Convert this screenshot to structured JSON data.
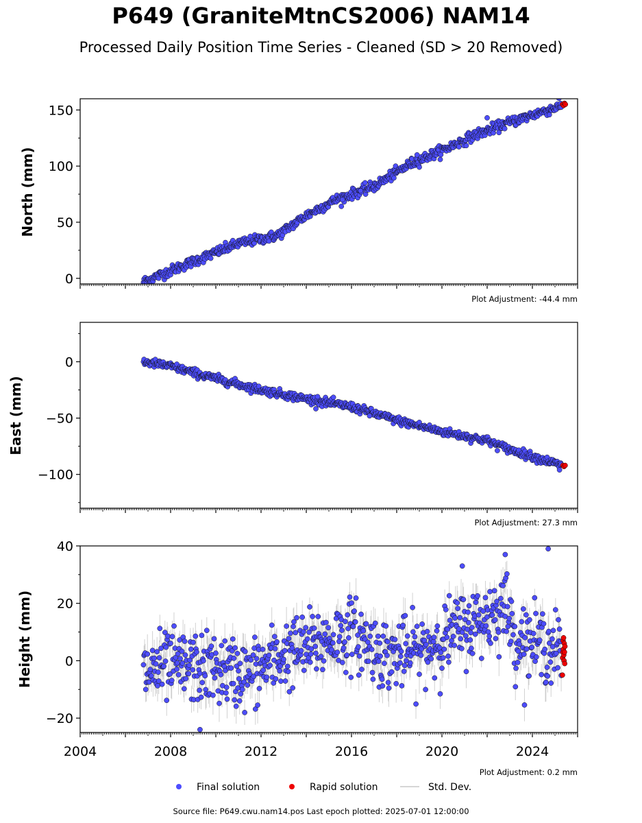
{
  "title": "P649 (GraniteMtnCS2006) NAM14",
  "subtitle": "Processed Daily Position Time Series - Cleaned (SD > 20 Removed)",
  "footer": "Source file: P649.cwu.nam14.pos  Last epoch plotted: 2025-07-01 12:00:00",
  "colors": {
    "final": "#4d4dff",
    "rapid": "#ee0000",
    "stddev": "#c8c8c8",
    "edge": "#000000"
  },
  "legend": [
    {
      "label": "Final solution",
      "marker": "blue-dot"
    },
    {
      "label": "Rapid solution",
      "marker": "red-dot"
    },
    {
      "label": "Std. Dev.",
      "marker": "gray-line"
    }
  ],
  "chart_data": [
    {
      "type": "scatter",
      "component": "north",
      "ylabel": "North (mm)",
      "xlim": [
        2004.0,
        2026.0
      ],
      "ylim": [
        -5,
        160
      ],
      "yticks": [
        0,
        50,
        100,
        150
      ],
      "xtick_labels_visible": false,
      "plot_adjustment": "Plot Adjustment: -44.4 mm",
      "final_trend": [
        [
          2006.8,
          -3
        ],
        [
          2009.0,
          15
        ],
        [
          2011.0,
          31
        ],
        [
          2012.7,
          38
        ],
        [
          2014.0,
          56
        ],
        [
          2015.3,
          70
        ],
        [
          2017.0,
          82
        ],
        [
          2018.6,
          102
        ],
        [
          2020.0,
          114
        ],
        [
          2021.5,
          128
        ],
        [
          2023.0,
          139
        ],
        [
          2025.3,
          154
        ]
      ],
      "final_noise_sd": 2.2,
      "outliers": [
        [
          2015.6,
          70
        ],
        [
          2016.4,
          78
        ],
        [
          2018.9,
          110
        ],
        [
          2022.0,
          143
        ]
      ],
      "rapid_points": [
        [
          2025.33,
          155
        ],
        [
          2025.38,
          154
        ],
        [
          2025.42,
          156
        ],
        [
          2025.46,
          155
        ]
      ]
    },
    {
      "type": "scatter",
      "component": "east",
      "ylabel": "East (mm)",
      "xlim": [
        2004.0,
        2026.0
      ],
      "ylim": [
        -130,
        35
      ],
      "yticks": [
        0,
        -50,
        -100
      ],
      "xtick_labels_visible": false,
      "plot_adjustment": "Plot Adjustment: 27.3 mm",
      "final_trend": [
        [
          2006.8,
          0
        ],
        [
          2008.0,
          -4
        ],
        [
          2010.0,
          -15
        ],
        [
          2012.0,
          -25
        ],
        [
          2014.0,
          -33
        ],
        [
          2016.0,
          -40
        ],
        [
          2018.0,
          -52
        ],
        [
          2020.0,
          -62
        ],
        [
          2022.0,
          -70
        ],
        [
          2023.0,
          -78
        ],
        [
          2025.3,
          -92
        ]
      ],
      "final_noise_sd": 1.8,
      "outliers": [
        [
          2014.5,
          -31
        ],
        [
          2016.8,
          -48
        ],
        [
          2025.2,
          -96
        ]
      ],
      "rapid_points": [
        [
          2025.35,
          -92
        ],
        [
          2025.4,
          -93
        ],
        [
          2025.45,
          -92
        ]
      ]
    },
    {
      "type": "scatter",
      "component": "height",
      "ylabel": "Height (mm)",
      "xlim": [
        2004.0,
        2026.0
      ],
      "ylim": [
        -25,
        40
      ],
      "yticks": [
        -20,
        0,
        20,
        40
      ],
      "xticks": [
        2004,
        2008,
        2012,
        2016,
        2020,
        2024
      ],
      "xtick_labels_visible": true,
      "plot_adjustment": "Plot Adjustment: 0.2 mm",
      "final_trend": [
        [
          2006.8,
          -4
        ],
        [
          2008.0,
          -2
        ],
        [
          2010.0,
          -3
        ],
        [
          2011.5,
          -5
        ],
        [
          2013.0,
          2
        ],
        [
          2014.5,
          6
        ],
        [
          2016.0,
          10
        ],
        [
          2017.5,
          2
        ],
        [
          2019.0,
          3
        ],
        [
          2020.5,
          10
        ],
        [
          2022.0,
          15
        ],
        [
          2022.8,
          20
        ],
        [
          2023.2,
          8
        ],
        [
          2025.3,
          4
        ]
      ],
      "final_noise_sd": 6.0,
      "outliers": [
        [
          2024.7,
          39
        ],
        [
          2022.8,
          37
        ],
        [
          2009.3,
          -24
        ],
        [
          2020.9,
          33
        ]
      ],
      "rapid_points": [
        [
          2025.33,
          -5
        ],
        [
          2025.34,
          1
        ],
        [
          2025.35,
          3
        ],
        [
          2025.36,
          7
        ],
        [
          2025.37,
          4
        ],
        [
          2025.38,
          8
        ],
        [
          2025.39,
          2
        ],
        [
          2025.4,
          0
        ],
        [
          2025.41,
          6
        ],
        [
          2025.42,
          3
        ],
        [
          2025.43,
          -1
        ],
        [
          2025.44,
          5
        ]
      ]
    }
  ]
}
